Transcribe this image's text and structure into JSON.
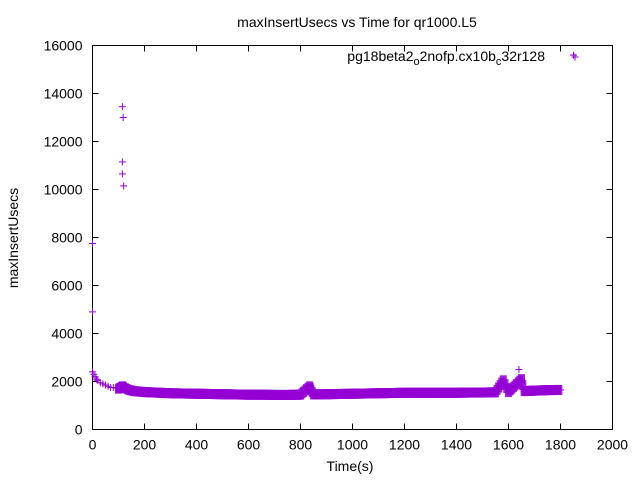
{
  "chart_data": {
    "type": "scatter",
    "title": "maxInsertUsecs vs Time for qr1000.L5",
    "xlabel": "Time(s)",
    "ylabel": "maxInsertUsecs",
    "xlim": [
      0,
      2000
    ],
    "ylim": [
      0,
      16000
    ],
    "x_ticks": [
      "0",
      "200",
      "400",
      "600",
      "800",
      "1000",
      "1200",
      "1400",
      "1600",
      "1800",
      "2000"
    ],
    "y_ticks": [
      "0",
      "2000",
      "4000",
      "6000",
      "8000",
      "10000",
      "12000",
      "14000",
      "16000"
    ],
    "legend": {
      "position": "top-right",
      "label_parts": [
        "pg18beta2",
        "o",
        "2nofp.cx10b",
        "c",
        "32r128"
      ]
    },
    "marker": "+",
    "series_color": "#9400d3",
    "series": [
      {
        "name": "pg18beta2_o2nofp.cx10b_c32r128",
        "points": [
          [
            0,
            7750
          ],
          [
            0,
            4900
          ],
          [
            0,
            2400
          ],
          [
            5,
            2300
          ],
          [
            10,
            2200
          ],
          [
            15,
            2100
          ],
          [
            20,
            2050
          ],
          [
            30,
            1950
          ],
          [
            40,
            1900
          ],
          [
            50,
            1850
          ],
          [
            60,
            1800
          ],
          [
            70,
            1750
          ],
          [
            80,
            1750
          ],
          [
            90,
            1720
          ],
          [
            100,
            1700
          ],
          [
            115,
            13450
          ],
          [
            118,
            13000
          ],
          [
            115,
            11150
          ],
          [
            115,
            10650
          ],
          [
            120,
            10150
          ],
          [
            115,
            1800
          ],
          [
            120,
            1750
          ],
          [
            140,
            1650
          ],
          [
            160,
            1600
          ],
          [
            180,
            1580
          ],
          [
            200,
            1560
          ],
          [
            220,
            1550
          ],
          [
            240,
            1540
          ],
          [
            260,
            1530
          ],
          [
            280,
            1520
          ],
          [
            300,
            1510
          ],
          [
            350,
            1500
          ],
          [
            400,
            1490
          ],
          [
            450,
            1480
          ],
          [
            500,
            1470
          ],
          [
            550,
            1460
          ],
          [
            600,
            1450
          ],
          [
            650,
            1450
          ],
          [
            700,
            1440
          ],
          [
            750,
            1440
          ],
          [
            800,
            1450
          ],
          [
            835,
            1800
          ],
          [
            840,
            1650
          ],
          [
            850,
            1460
          ],
          [
            900,
            1470
          ],
          [
            950,
            1480
          ],
          [
            1000,
            1490
          ],
          [
            1050,
            1500
          ],
          [
            1100,
            1510
          ],
          [
            1150,
            1520
          ],
          [
            1200,
            1530
          ],
          [
            1250,
            1530
          ],
          [
            1300,
            1530
          ],
          [
            1350,
            1530
          ],
          [
            1400,
            1530
          ],
          [
            1450,
            1540
          ],
          [
            1500,
            1540
          ],
          [
            1550,
            1550
          ],
          [
            1580,
            2050
          ],
          [
            1600,
            1560
          ],
          [
            1640,
            2500
          ],
          [
            1650,
            2100
          ],
          [
            1660,
            1600
          ],
          [
            1700,
            1620
          ],
          [
            1750,
            1640
          ],
          [
            1800,
            1650
          ],
          [
            1850,
            15600
          ]
        ]
      }
    ]
  }
}
